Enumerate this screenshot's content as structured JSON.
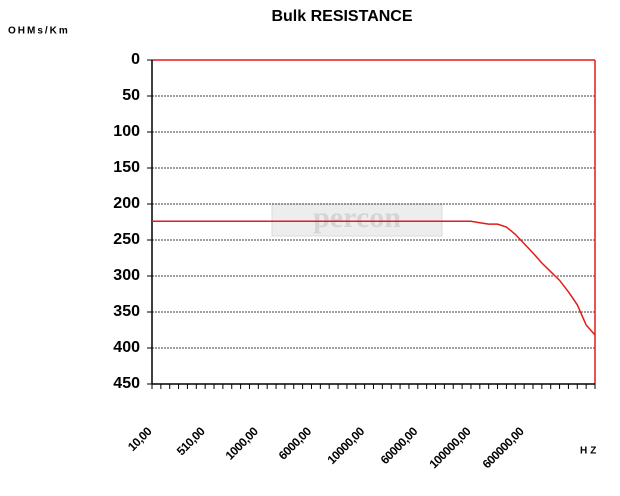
{
  "chart_data": {
    "type": "line",
    "title": "Bulk RESISTANCE",
    "y_label": "OHMs/Km",
    "x_label": "HZ",
    "watermark": "percon",
    "categories": [
      "10,00",
      null,
      null,
      null,
      null,
      null,
      "510,00",
      null,
      null,
      null,
      null,
      null,
      "1000,00",
      null,
      null,
      null,
      null,
      null,
      "6000,00",
      null,
      null,
      null,
      null,
      null,
      "10000,00",
      null,
      null,
      null,
      null,
      null,
      "60000,00",
      null,
      null,
      null,
      null,
      null,
      "100000,00",
      null,
      null,
      null,
      null,
      null,
      "600000,00",
      null,
      null,
      null,
      null,
      null,
      null,
      null,
      null
    ],
    "series": [
      {
        "name": "Bulk RESISTANCE",
        "color": "#e41b1b",
        "values": [
          224,
          224,
          224,
          224,
          224,
          224,
          224,
          224,
          224,
          224,
          224,
          224,
          224,
          224,
          224,
          224,
          224,
          224,
          224,
          224,
          224,
          224,
          224,
          224,
          224,
          224,
          224,
          224,
          224,
          224,
          224,
          224,
          224,
          224,
          224,
          224,
          224,
          226,
          228,
          228,
          232,
          242,
          255,
          268,
          282,
          294,
          306,
          322,
          340,
          368,
          382
        ]
      }
    ],
    "ylim": [
      0,
      450
    ],
    "yticks": [
      0,
      50,
      100,
      150,
      200,
      250,
      300,
      350,
      400,
      450
    ],
    "y_inverted": true,
    "grid": true
  }
}
